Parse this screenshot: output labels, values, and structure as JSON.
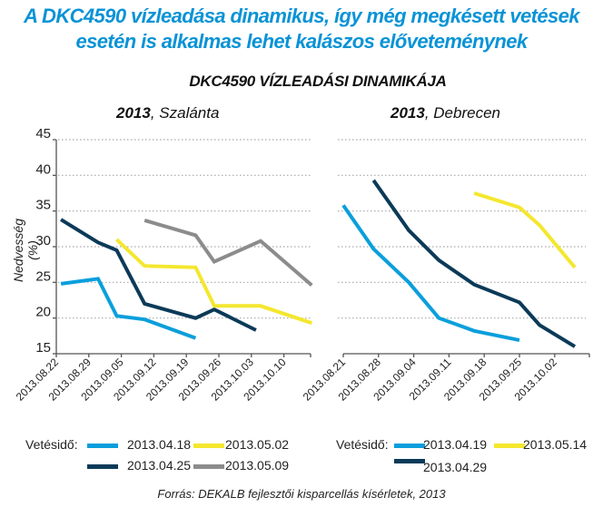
{
  "headline": {
    "line1": "A DKC4590 vízleadása dinamikus, így még megkésett vetések",
    "line2": "esetén is alkalmas lehet kalászos előveteménynek"
  },
  "subtitle": "DKC4590  VÍZLEADÁSI DINAMIKÁJA",
  "source": "Forrás:  DEKALB fejlesztői kisparcellás kísérletek, 2013",
  "colors": {
    "headline": "#0a93d6",
    "light_blue": "#0a9fdc",
    "navy": "#0b3a58",
    "yellow": "#f4e72e",
    "gray": "#8c8c8c"
  },
  "chart_data": [
    {
      "type": "line",
      "title_year": "2013",
      "title_place": ", Szalánta",
      "ylabel": "Nedvesség (%)",
      "xlabel": "",
      "ylim": [
        15,
        45
      ],
      "yticks": [
        "15",
        "20",
        "25",
        "30",
        "35",
        "40",
        "45"
      ],
      "xlim": [
        "2013.08.22",
        "2013.10.17"
      ],
      "xticks": [
        "2013.08.22",
        "2013.08.29",
        "2013.09.05",
        "2013.09.12",
        "2013.09.19",
        "2013.09.26",
        "2013.10.03",
        "2013.10.10"
      ],
      "grid": "horizontal-dotted",
      "legend_title": "Vetésidő:",
      "legend_position": "bottom",
      "series": [
        {
          "name": "2013.04.18",
          "color": "light_blue",
          "points": [
            [
              "2013.08.23",
              24.8
            ],
            [
              "2013.08.31",
              25.5
            ],
            [
              "2013.09.04",
              20.3
            ],
            [
              "2013.09.10",
              19.8
            ],
            [
              "2013.09.21",
              17.2
            ]
          ]
        },
        {
          "name": "2013.04.25",
          "color": "navy",
          "points": [
            [
              "2013.08.23",
              33.8
            ],
            [
              "2013.08.31",
              30.6
            ],
            [
              "2013.09.04",
              29.5
            ],
            [
              "2013.09.10",
              22.0
            ],
            [
              "2013.09.21",
              20.0
            ],
            [
              "2013.09.25",
              21.2
            ],
            [
              "2013.10.04",
              18.3
            ]
          ]
        },
        {
          "name": "2013.05.02",
          "color": "yellow",
          "points": [
            [
              "2013.09.04",
              31.0
            ],
            [
              "2013.09.10",
              27.3
            ],
            [
              "2013.09.21",
              27.1
            ],
            [
              "2013.09.25",
              21.7
            ],
            [
              "2013.10.05",
              21.7
            ],
            [
              "2013.10.16",
              19.3
            ]
          ]
        },
        {
          "name": "2013.05.09",
          "color": "gray",
          "points": [
            [
              "2013.09.10",
              33.7
            ],
            [
              "2013.09.21",
              31.6
            ],
            [
              "2013.09.25",
              27.9
            ],
            [
              "2013.10.05",
              30.8
            ],
            [
              "2013.10.16",
              24.6
            ]
          ]
        }
      ]
    },
    {
      "type": "line",
      "title_year": "2013",
      "title_place": ", Debrecen",
      "ylabel": "",
      "xlabel": "",
      "ylim": [
        15,
        45
      ],
      "xlim": [
        "2013.08.21",
        "2013.10.09"
      ],
      "xticks": [
        "2013.08.21",
        "2013.08.28",
        "2013.09.04",
        "2013.09.11",
        "2013.09.18",
        "2013.09.25",
        "2013.10.02"
      ],
      "grid": "horizontal-dotted",
      "legend_title": "Vetésidő:",
      "legend_position": "bottom",
      "series": [
        {
          "name": "2013.04.19",
          "color": "light_blue",
          "points": [
            [
              "2013.08.21",
              35.8
            ],
            [
              "2013.08.27",
              29.7
            ],
            [
              "2013.09.03",
              25.0
            ],
            [
              "2013.09.09",
              20.0
            ],
            [
              "2013.09.16",
              18.2
            ],
            [
              "2013.09.25",
              16.9
            ]
          ]
        },
        {
          "name": "2013.05.14",
          "color": "yellow",
          "points": [
            [
              "2013.09.16",
              37.5
            ],
            [
              "2013.09.25",
              35.5
            ],
            [
              "2013.09.29",
              33.0
            ],
            [
              "2013.10.06",
              27.1
            ]
          ]
        },
        {
          "name": "2013.04.29",
          "color": "navy",
          "points": [
            [
              "2013.08.27",
              39.3
            ],
            [
              "2013.09.03",
              32.3
            ],
            [
              "2013.09.09",
              28.1
            ],
            [
              "2013.09.16",
              24.7
            ],
            [
              "2013.09.25",
              22.2
            ],
            [
              "2013.09.29",
              19.0
            ],
            [
              "2013.10.06",
              16.0
            ]
          ]
        }
      ]
    }
  ]
}
